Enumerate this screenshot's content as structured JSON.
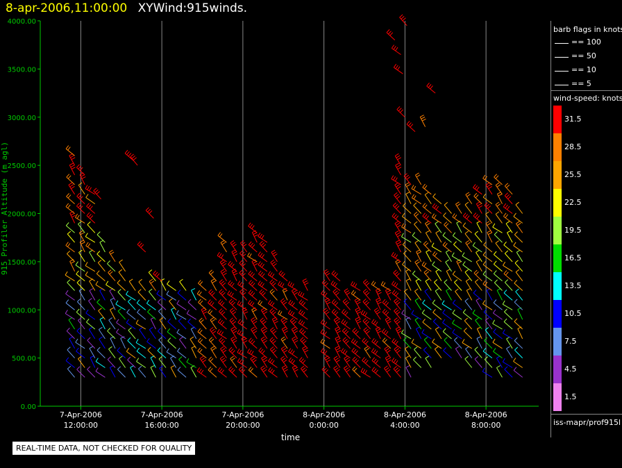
{
  "header": {
    "timestamp": "8-apr-2006,11:00:00",
    "product": "XYWind:915winds."
  },
  "notice": "REAL-TIME DATA, NOT CHECKED FOR QUALITY",
  "legend": {
    "barb_title": "barb flags in knots",
    "barb_items": [
      "== 100",
      "== 50",
      "== 10",
      "== 5"
    ],
    "speed_title": "wind-speed: knots",
    "speed_levels": [
      {
        "label": "31.5",
        "color": "#ff0000"
      },
      {
        "label": "28.5",
        "color": "#ff8000"
      },
      {
        "label": "25.5",
        "color": "#ffa500"
      },
      {
        "label": "22.5",
        "color": "#ffff00"
      },
      {
        "label": "19.5",
        "color": "#a0ff40"
      },
      {
        "label": "16.5",
        "color": "#00dd00"
      },
      {
        "label": "13.5",
        "color": "#00ffff"
      },
      {
        "label": "10.5",
        "color": "#0000ff"
      },
      {
        "label": "7.5",
        "color": "#6495ed"
      },
      {
        "label": "4.5",
        "color": "#9932cc"
      },
      {
        "label": "1.5",
        "color": "#ee82ee"
      }
    ],
    "source": "iss-mapr/prof915l"
  },
  "chart_data": {
    "type": "scatter",
    "title": "XYWind:915winds.",
    "xlabel": "time",
    "ylabel": "915 Profiler Altitude (m agl)",
    "ylim": [
      0,
      4000
    ],
    "yticks": [
      "0.00",
      "500.00",
      "1000.00",
      "1500.00",
      "2000.00",
      "2500.00",
      "3000.00",
      "3500.00",
      "4000.00"
    ],
    "xticks": [
      {
        "date": "7-Apr-2006",
        "time": "12:00:00"
      },
      {
        "date": "7-Apr-2006",
        "time": "16:00:00"
      },
      {
        "date": "7-Apr-2006",
        "time": "20:00:00"
      },
      {
        "date": "8-Apr-2006",
        "time": "0:00:00"
      },
      {
        "date": "8-Apr-2006",
        "time": "4:00:00"
      },
      {
        "date": "8-Apr-2006",
        "time": "8:00:00"
      }
    ],
    "grid": "vertical",
    "barb_columns": [
      {
        "time_h": 11.7,
        "zmin": 300,
        "zmax": 2600,
        "band": "mix"
      },
      {
        "time_h": 12.2,
        "zmin": 300,
        "zmax": 2400,
        "band": "mix"
      },
      {
        "time_h": 12.7,
        "zmin": 300,
        "zmax": 2200,
        "band": "mix"
      },
      {
        "time_h": 13.2,
        "zmin": 300,
        "zmax": 1700,
        "band": "mix"
      },
      {
        "time_h": 13.7,
        "zmin": 300,
        "zmax": 1500,
        "band": "mix"
      },
      {
        "time_h": 14.2,
        "zmin": 300,
        "zmax": 1400,
        "band": "mix"
      },
      {
        "time_h": 14.7,
        "zmin": 300,
        "zmax": 1200,
        "band": "mix"
      },
      {
        "time_h": 15.2,
        "zmin": 300,
        "zmax": 1200,
        "band": "mix"
      },
      {
        "time_h": 15.7,
        "zmin": 300,
        "zmax": 1300,
        "band": "mix"
      },
      {
        "time_h": 16.2,
        "zmin": 300,
        "zmax": 1200,
        "band": "mix"
      },
      {
        "time_h": 16.7,
        "zmin": 300,
        "zmax": 1200,
        "band": "mix"
      },
      {
        "time_h": 17.2,
        "zmin": 300,
        "zmax": 1200,
        "band": "mix"
      },
      {
        "time_h": 17.7,
        "zmin": 300,
        "zmax": 1100,
        "band": "mix"
      },
      {
        "time_h": 18.2,
        "zmin": 300,
        "zmax": 1200,
        "band": "warm"
      },
      {
        "time_h": 18.7,
        "zmin": 300,
        "zmax": 1300,
        "band": "warm"
      },
      {
        "time_h": 19.2,
        "zmin": 300,
        "zmax": 1700,
        "band": "red"
      },
      {
        "time_h": 19.7,
        "zmin": 300,
        "zmax": 1600,
        "band": "red"
      },
      {
        "time_h": 20.2,
        "zmin": 300,
        "zmax": 1600,
        "band": "red"
      },
      {
        "time_h": 20.7,
        "zmin": 300,
        "zmax": 1800,
        "band": "red"
      },
      {
        "time_h": 21.2,
        "zmin": 300,
        "zmax": 1700,
        "band": "red"
      },
      {
        "time_h": 21.7,
        "zmin": 300,
        "zmax": 1500,
        "band": "red"
      },
      {
        "time_h": 22.2,
        "zmin": 300,
        "zmax": 1300,
        "band": "red"
      },
      {
        "time_h": 22.7,
        "zmin": 300,
        "zmax": 1200,
        "band": "red"
      },
      {
        "time_h": 23.2,
        "zmin": 300,
        "zmax": 1200,
        "band": "red"
      },
      {
        "time_h": 24.3,
        "zmin": 300,
        "zmax": 1300,
        "band": "red"
      },
      {
        "time_h": 24.8,
        "zmin": 300,
        "zmax": 1300,
        "band": "red"
      },
      {
        "time_h": 25.3,
        "zmin": 300,
        "zmax": 1100,
        "band": "red"
      },
      {
        "time_h": 25.8,
        "zmin": 300,
        "zmax": 1200,
        "band": "red"
      },
      {
        "time_h": 26.3,
        "zmin": 300,
        "zmax": 1200,
        "band": "red"
      },
      {
        "time_h": 26.8,
        "zmin": 300,
        "zmax": 1200,
        "band": "red"
      },
      {
        "time_h": 27.3,
        "zmin": 300,
        "zmax": 1200,
        "band": "red"
      },
      {
        "time_h": 27.8,
        "zmin": 300,
        "zmax": 2500,
        "band": "red"
      },
      {
        "time_h": 28.3,
        "zmin": 300,
        "zmax": 2300,
        "band": "mix"
      },
      {
        "time_h": 28.8,
        "zmin": 400,
        "zmax": 2300,
        "band": "mix"
      },
      {
        "time_h": 29.3,
        "zmin": 400,
        "zmax": 2200,
        "band": "mix"
      },
      {
        "time_h": 29.8,
        "zmin": 500,
        "zmax": 2100,
        "band": "mix"
      },
      {
        "time_h": 30.3,
        "zmin": 500,
        "zmax": 2000,
        "band": "mix"
      },
      {
        "time_h": 30.8,
        "zmin": 500,
        "zmax": 2000,
        "band": "mix"
      },
      {
        "time_h": 31.3,
        "zmin": 400,
        "zmax": 2100,
        "band": "mix"
      },
      {
        "time_h": 31.8,
        "zmin": 400,
        "zmax": 2200,
        "band": "mix"
      },
      {
        "time_h": 32.3,
        "zmin": 300,
        "zmax": 2300,
        "band": "mix"
      },
      {
        "time_h": 32.8,
        "zmin": 300,
        "zmax": 2300,
        "band": "mix"
      },
      {
        "time_h": 33.3,
        "zmin": 300,
        "zmax": 2200,
        "band": "mix"
      },
      {
        "time_h": 33.8,
        "zmin": 300,
        "zmax": 2000,
        "band": "mix"
      }
    ],
    "scattered_barbs": [
      {
        "time_h": 27.5,
        "z": 3800,
        "band": "red"
      },
      {
        "time_h": 27.8,
        "z": 3650,
        "band": "red"
      },
      {
        "time_h": 28.1,
        "z": 3950,
        "band": "red"
      },
      {
        "time_h": 27.9,
        "z": 3450,
        "band": "red"
      },
      {
        "time_h": 29.5,
        "z": 3250,
        "band": "red"
      },
      {
        "time_h": 28.0,
        "z": 3000,
        "band": "red"
      },
      {
        "time_h": 28.5,
        "z": 2850,
        "band": "red"
      },
      {
        "time_h": 29.0,
        "z": 2900,
        "band": "red"
      },
      {
        "time_h": 14.8,
        "z": 2500,
        "band": "warm"
      },
      {
        "time_h": 14.6,
        "z": 2550,
        "band": "warm"
      },
      {
        "time_h": 13.0,
        "z": 2150,
        "band": "red"
      },
      {
        "time_h": 15.6,
        "z": 1950,
        "band": "red"
      },
      {
        "time_h": 15.2,
        "z": 1600,
        "band": "red"
      },
      {
        "time_h": 16.0,
        "z": 1300,
        "band": "red"
      }
    ]
  }
}
